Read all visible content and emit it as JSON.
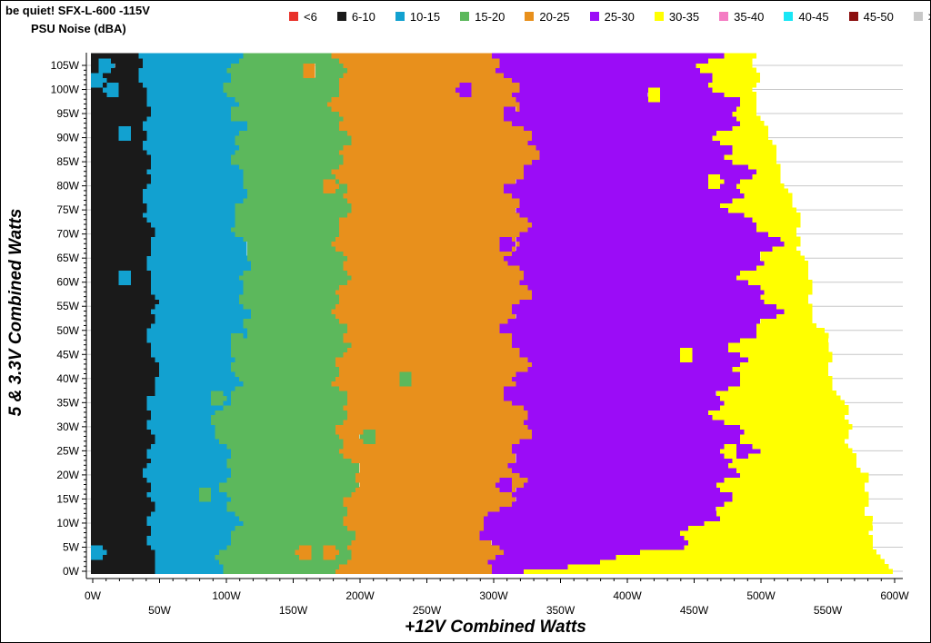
{
  "header": {
    "title": "be quiet! SFX-L-600 -115V",
    "subtitle": "PSU Noise (dBA)"
  },
  "chart_data": {
    "type": "heatmap",
    "title": "be quiet! SFX-L-600 -115V",
    "subtitle": "PSU Noise (dBA)",
    "xlabel": "+12V Combined Watts",
    "ylabel": "5 & 3.3V Combined Watts",
    "xlim": [
      0,
      600
    ],
    "ylim": [
      0,
      105
    ],
    "x_ticks": [
      "0W",
      "50W",
      "100W",
      "150W",
      "200W",
      "250W",
      "300W",
      "350W",
      "400W",
      "450W",
      "500W",
      "550W",
      "600W"
    ],
    "y_ticks": [
      "0W",
      "5W",
      "10W",
      "15W",
      "20W",
      "25W",
      "30W",
      "35W",
      "40W",
      "45W",
      "50W",
      "55W",
      "60W",
      "65W",
      "70W",
      "75W",
      "80W",
      "85W",
      "90W",
      "95W",
      "100W",
      "105W"
    ],
    "grid": true,
    "legend_position": "top",
    "legend": [
      {
        "label": "<6",
        "color": "#e8312a"
      },
      {
        "label": "6-10",
        "color": "#1a1a1a"
      },
      {
        "label": "10-15",
        "color": "#12a1d0"
      },
      {
        "label": "15-20",
        "color": "#5cb85c"
      },
      {
        "label": "20-25",
        "color": "#e8901c"
      },
      {
        "label": "25-30",
        "color": "#9b0cf7"
      },
      {
        "label": "30-35",
        "color": "#ffff00"
      },
      {
        "label": "35-40",
        "color": "#f47cc3"
      },
      {
        "label": "40-45",
        "color": "#19e6f5"
      },
      {
        "label": "45-50",
        "color": "#8b0f0f"
      },
      {
        "label": ">50",
        "color": "#c8c8c8"
      }
    ],
    "band_boundaries": [
      {
        "y": 0,
        "b6_10": 44,
        "b10_15": 98,
        "b15_20": 190,
        "b20_25": 290,
        "b25_30": 320,
        "max_x": 600
      },
      {
        "y": 5,
        "b6_10": 46,
        "b10_15": 100,
        "b15_20": 190,
        "b20_25": 300,
        "b25_30": 450,
        "max_x": 580
      },
      {
        "y": 10,
        "b6_10": 42,
        "b10_15": 104,
        "b15_20": 192,
        "b20_25": 296,
        "b25_30": 450,
        "max_x": 585
      },
      {
        "y": 20,
        "b6_10": 42,
        "b10_15": 102,
        "b15_20": 195,
        "b20_25": 320,
        "b25_30": 488,
        "max_x": 575
      },
      {
        "y": 30,
        "b6_10": 42,
        "b10_15": 92,
        "b15_20": 186,
        "b20_25": 320,
        "b25_30": 478,
        "max_x": 565
      },
      {
        "y": 40,
        "b6_10": 46,
        "b10_15": 106,
        "b15_20": 186,
        "b20_25": 320,
        "b25_30": 472,
        "max_x": 555
      },
      {
        "y": 50,
        "b6_10": 44,
        "b10_15": 110,
        "b15_20": 186,
        "b20_25": 315,
        "b25_30": 500,
        "max_x": 545
      },
      {
        "y": 60,
        "b6_10": 44,
        "b10_15": 116,
        "b15_20": 186,
        "b20_25": 320,
        "b25_30": 500,
        "max_x": 535
      },
      {
        "y": 70,
        "b6_10": 42,
        "b10_15": 110,
        "b15_20": 186,
        "b20_25": 318,
        "b25_30": 500,
        "max_x": 530
      },
      {
        "y": 80,
        "b6_10": 40,
        "b10_15": 110,
        "b15_20": 188,
        "b20_25": 318,
        "b25_30": 480,
        "max_x": 520
      },
      {
        "y": 90,
        "b6_10": 42,
        "b10_15": 110,
        "b15_20": 186,
        "b20_25": 330,
        "b25_30": 480,
        "max_x": 505
      },
      {
        "y": 100,
        "b6_10": 38,
        "b10_15": 104,
        "b15_20": 184,
        "b20_25": 310,
        "b25_30": 470,
        "max_x": 495
      },
      {
        "y": 107,
        "b6_10": 38,
        "b10_15": 104,
        "b15_20": 182,
        "b20_25": 305,
        "b25_30": 465,
        "max_x": 495
      }
    ],
    "spots": [
      {
        "x": 10,
        "y": 105,
        "band": "10-15"
      },
      {
        "x": 4,
        "y": 102,
        "band": "10-15"
      },
      {
        "x": 14,
        "y": 100,
        "band": "10-15"
      },
      {
        "x": 24,
        "y": 91,
        "band": "10-15"
      },
      {
        "x": 24,
        "y": 61,
        "band": "10-15"
      },
      {
        "x": 4,
        "y": 4,
        "band": "10-15"
      },
      {
        "x": 108,
        "y": 95,
        "band": "15-20"
      },
      {
        "x": 108,
        "y": 48,
        "band": "15-20"
      },
      {
        "x": 94,
        "y": 36,
        "band": "15-20"
      },
      {
        "x": 84,
        "y": 16,
        "band": "15-20"
      },
      {
        "x": 162,
        "y": 104,
        "band": "20-25"
      },
      {
        "x": 158,
        "y": 4,
        "band": "20-25"
      },
      {
        "x": 178,
        "y": 4,
        "band": "20-25"
      },
      {
        "x": 178,
        "y": 80,
        "band": "20-25"
      },
      {
        "x": 206,
        "y": 28,
        "band": "15-20"
      },
      {
        "x": 234,
        "y": 40,
        "band": "15-20"
      },
      {
        "x": 278,
        "y": 100,
        "band": "25-30"
      },
      {
        "x": 312,
        "y": 95,
        "band": "25-30"
      },
      {
        "x": 310,
        "y": 68,
        "band": "25-30"
      },
      {
        "x": 318,
        "y": 48,
        "band": "25-30"
      },
      {
        "x": 312,
        "y": 37,
        "band": "25-30"
      },
      {
        "x": 308,
        "y": 18,
        "band": "25-30"
      },
      {
        "x": 420,
        "y": 99,
        "band": "30-35"
      },
      {
        "x": 444,
        "y": 45,
        "band": "30-35"
      },
      {
        "x": 466,
        "y": 81,
        "band": "30-35"
      },
      {
        "x": 490,
        "y": 96,
        "band": "30-35"
      },
      {
        "x": 476,
        "y": 25,
        "band": "30-35"
      },
      {
        "x": 464,
        "y": 9,
        "band": "30-35"
      },
      {
        "x": 492,
        "y": 76,
        "band": "30-35"
      },
      {
        "x": 506,
        "y": 50,
        "band": "30-35"
      },
      {
        "x": 490,
        "y": 40,
        "band": "30-35"
      },
      {
        "x": 518,
        "y": 62,
        "band": "30-35"
      }
    ]
  }
}
